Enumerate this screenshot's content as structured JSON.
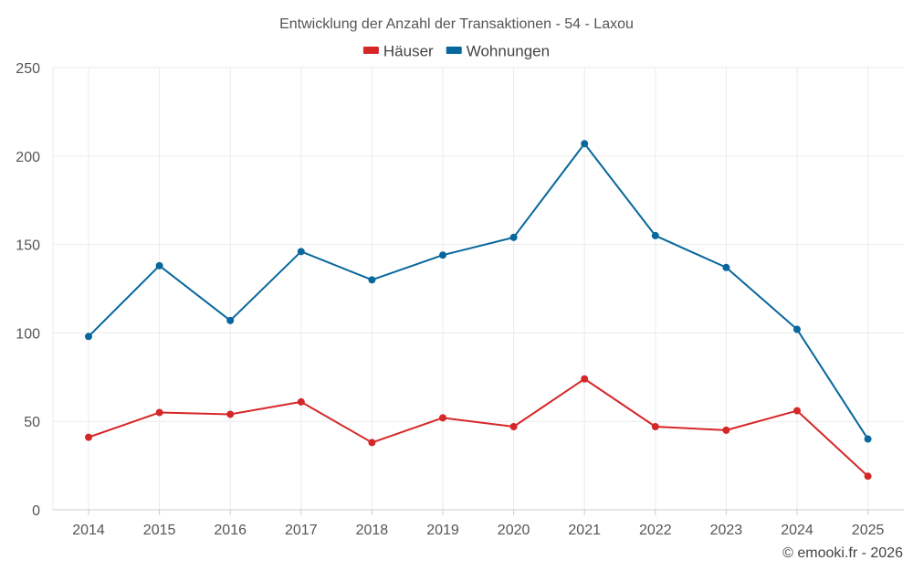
{
  "chart_data": {
    "type": "line",
    "title": "Entwicklung der Anzahl der Transaktionen - 54 - Laxou",
    "x": [
      "2014",
      "2015",
      "2016",
      "2017",
      "2018",
      "2019",
      "2020",
      "2021",
      "2022",
      "2023",
      "2024",
      "2025"
    ],
    "series": [
      {
        "name": "Häuser",
        "color": "#d62728",
        "values": [
          41,
          55,
          54,
          61,
          38,
          52,
          47,
          74,
          47,
          45,
          56,
          19
        ]
      },
      {
        "name": "Wohnungen",
        "color": "#08679c",
        "values": [
          98,
          138,
          107,
          146,
          130,
          144,
          154,
          207,
          155,
          137,
          102,
          40
        ]
      }
    ],
    "ylim": [
      0,
      250
    ],
    "yticks": [
      0,
      50,
      100,
      150,
      200,
      250
    ],
    "ytick_labels": [
      "0",
      "50",
      "100",
      "150",
      "200",
      "250"
    ],
    "xlabel": "",
    "ylabel": "",
    "grid": true,
    "legend_position": "top-center"
  },
  "credit": "© emooki.fr - 2026"
}
